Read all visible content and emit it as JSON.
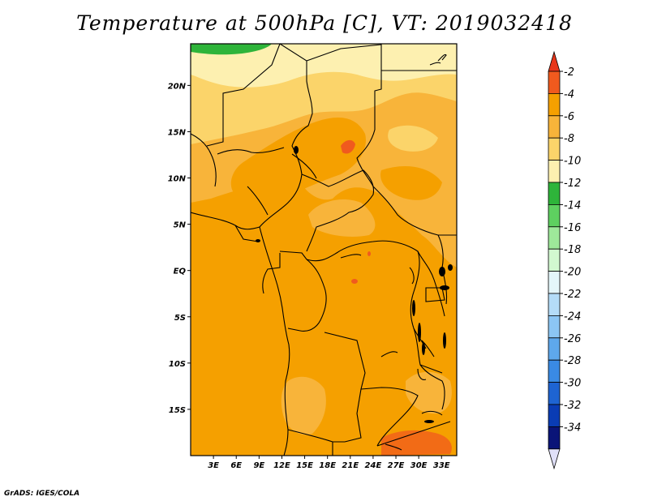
{
  "title": "Temperature at 500hPa [C], VT: 2019032418",
  "credit": "GrADS: IGES/COLA",
  "map": {
    "lat_labels": [
      "20N",
      "15N",
      "10N",
      "5N",
      "EQ",
      "5S",
      "10S",
      "15S"
    ],
    "lon_labels": [
      "3E",
      "6E",
      "9E",
      "12E",
      "15E",
      "18E",
      "21E",
      "24E",
      "27E",
      "30E",
      "33E"
    ],
    "lat_range": [
      -20,
      24.5
    ],
    "lon_range": [
      0,
      35
    ]
  },
  "colorbar": {
    "levels": [
      "-2",
      "-4",
      "-6",
      "-8",
      "-10",
      "-12",
      "-14",
      "-16",
      "-18",
      "-20",
      "-22",
      "-24",
      "-26",
      "-28",
      "-30",
      "-32",
      "-34"
    ],
    "colors": [
      "#f05a1e",
      "#f5a000",
      "#f8b43a",
      "#fbd46a",
      "#fdf0b0",
      "#2eb43a",
      "#5ed060",
      "#9ee89a",
      "#d2f8d0",
      "#e4f6fa",
      "#b4dcf8",
      "#8cc6f4",
      "#5ea8ec",
      "#3a8ae4",
      "#1e64d2",
      "#0a3cb4",
      "#0a1478"
    ],
    "top_arrow_color": "#e8361a",
    "bottom_arrow_color": "#e0e0f8"
  }
}
